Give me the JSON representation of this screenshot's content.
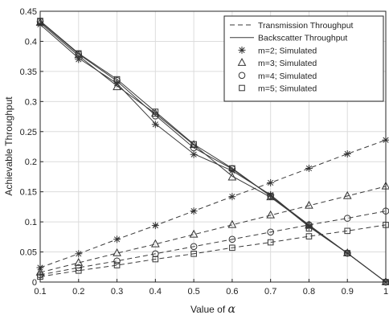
{
  "chart_data": {
    "type": "line",
    "xlabel_prefix": "Value of ",
    "xlabel_symbol": "α",
    "ylabel": "Achievable Throughput",
    "xlim": [
      0.1,
      1
    ],
    "ylim": [
      0,
      0.45
    ],
    "grid": true,
    "legend_position": "top-right",
    "x_ticks": [
      0.1,
      0.2,
      0.3,
      0.4,
      0.5,
      0.6,
      0.7,
      0.8,
      0.9,
      1
    ],
    "x_tick_labels": [
      "0.1",
      "0.2",
      "0.3",
      "0.4",
      "0.5",
      "0.6",
      "0.7",
      "0.8",
      "0.9",
      "1"
    ],
    "y_ticks": [
      0,
      0.05,
      0.1,
      0.15,
      0.2,
      0.25,
      0.3,
      0.35,
      0.4,
      0.45
    ],
    "y_tick_labels": [
      "0",
      "0.05",
      "0.1",
      "0.15",
      "0.2",
      "0.25",
      "0.3",
      "0.35",
      "0.4",
      "0.45"
    ],
    "x": [
      0.1,
      0.2,
      0.3,
      0.4,
      0.5,
      0.6,
      0.7,
      0.8,
      0.9,
      1.0
    ],
    "legend": [
      {
        "label": "Transmission Throughput",
        "style": "dashed"
      },
      {
        "label": "Backscatter Throughput",
        "style": "solid"
      },
      {
        "label": "m=2; Simulated",
        "marker": "star"
      },
      {
        "label": "m=3; Simulated",
        "marker": "triangle"
      },
      {
        "label": "m=4; Simulated",
        "marker": "circle"
      },
      {
        "label": "m=5; Simulated",
        "marker": "square"
      }
    ],
    "series": [
      {
        "m": 2,
        "marker": "star",
        "transmission": [
          0.024,
          0.047,
          0.071,
          0.094,
          0.118,
          0.142,
          0.165,
          0.189,
          0.213,
          0.236
        ],
        "backscatter": [
          0.428,
          0.372,
          0.33,
          0.263,
          0.213,
          0.185,
          0.145,
          0.093,
          0.048,
          0.0
        ],
        "transmission_simulated": [
          0.024,
          0.047,
          0.071,
          0.094,
          0.118,
          0.142,
          0.165,
          0.189,
          0.213,
          0.236
        ],
        "backscatter_simulated": [
          0.428,
          0.37,
          0.33,
          0.262,
          0.212,
          0.185,
          0.145,
          0.092,
          0.048,
          0.0
        ]
      },
      {
        "m": 3,
        "marker": "triangle",
        "transmission": [
          0.016,
          0.032,
          0.048,
          0.063,
          0.079,
          0.095,
          0.111,
          0.127,
          0.143,
          0.159
        ],
        "backscatter": [
          0.431,
          0.376,
          0.326,
          0.28,
          0.228,
          0.176,
          0.141,
          0.094,
          0.048,
          0.0
        ],
        "transmission_simulated": [
          0.016,
          0.032,
          0.048,
          0.063,
          0.079,
          0.095,
          0.111,
          0.127,
          0.143,
          0.159
        ],
        "backscatter_simulated": [
          0.431,
          0.377,
          0.324,
          0.28,
          0.228,
          0.174,
          0.141,
          0.094,
          0.048,
          0.0
        ]
      },
      {
        "m": 4,
        "marker": "circle",
        "transmission": [
          0.012,
          0.024,
          0.035,
          0.047,
          0.059,
          0.071,
          0.083,
          0.095,
          0.106,
          0.118
        ],
        "backscatter": [
          0.433,
          0.379,
          0.334,
          0.277,
          0.223,
          0.188,
          0.143,
          0.095,
          0.048,
          0.0
        ],
        "transmission_simulated": [
          0.012,
          0.024,
          0.035,
          0.047,
          0.059,
          0.071,
          0.083,
          0.095,
          0.106,
          0.118
        ],
        "backscatter_simulated": [
          0.433,
          0.379,
          0.335,
          0.276,
          0.223,
          0.188,
          0.143,
          0.095,
          0.048,
          0.0
        ]
      },
      {
        "m": 5,
        "marker": "square",
        "transmission": [
          0.009,
          0.019,
          0.028,
          0.038,
          0.047,
          0.057,
          0.066,
          0.076,
          0.085,
          0.095
        ],
        "backscatter": [
          0.434,
          0.38,
          0.337,
          0.283,
          0.229,
          0.189,
          0.143,
          0.092,
          0.048,
          0.0
        ],
        "transmission_simulated": [
          0.009,
          0.019,
          0.028,
          0.038,
          0.047,
          0.057,
          0.066,
          0.076,
          0.085,
          0.095
        ],
        "backscatter_simulated": [
          0.434,
          0.38,
          0.337,
          0.283,
          0.229,
          0.189,
          0.143,
          0.089,
          0.048,
          0.0
        ]
      }
    ]
  }
}
